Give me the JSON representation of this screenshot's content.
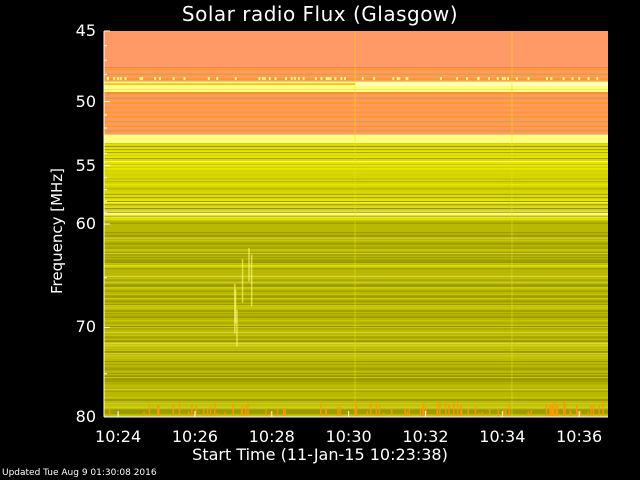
{
  "chart_data": {
    "type": "heatmap",
    "title": "Solar radio Flux (Glasgow)",
    "xlabel": "Start Time (11-Jan-15 10:23:38)",
    "ylabel": "Frequency [MHz]",
    "y_ticks": [
      "45",
      "50",
      "55",
      "60",
      "70",
      "80"
    ],
    "x_ticks": [
      "10:24",
      "10:26",
      "10:28",
      "10:30",
      "10:32",
      "10:34",
      "10:36"
    ],
    "x_range": [
      "10:23:38",
      "10:36:45"
    ],
    "y_range": [
      45,
      80
    ],
    "y_scale": "log",
    "colormap_colors": [
      "#8c8a00",
      "#c8c800",
      "#e6e600",
      "#ffff80",
      "#ff9a00",
      "#ff9966"
    ],
    "bands": [
      {
        "from": 45,
        "to": 47.5,
        "level": "high"
      },
      {
        "from": 47.5,
        "to": 48.5,
        "level": "high"
      },
      {
        "from": 48.5,
        "to": 49.3,
        "level": "peak"
      },
      {
        "from": 49.3,
        "to": 52.5,
        "level": "high"
      },
      {
        "from": 52.5,
        "to": 53.2,
        "level": "peak"
      },
      {
        "from": 53.2,
        "to": 58.5,
        "level": "mid-high"
      },
      {
        "from": 58.5,
        "to": 59.5,
        "level": "peak"
      },
      {
        "from": 59.5,
        "to": 80,
        "level": "mid"
      }
    ],
    "segment_breaks": [
      "10:30:10",
      "10:34:15"
    ]
  },
  "footer": "Updated Tue Aug  9 01:30:08 2016"
}
